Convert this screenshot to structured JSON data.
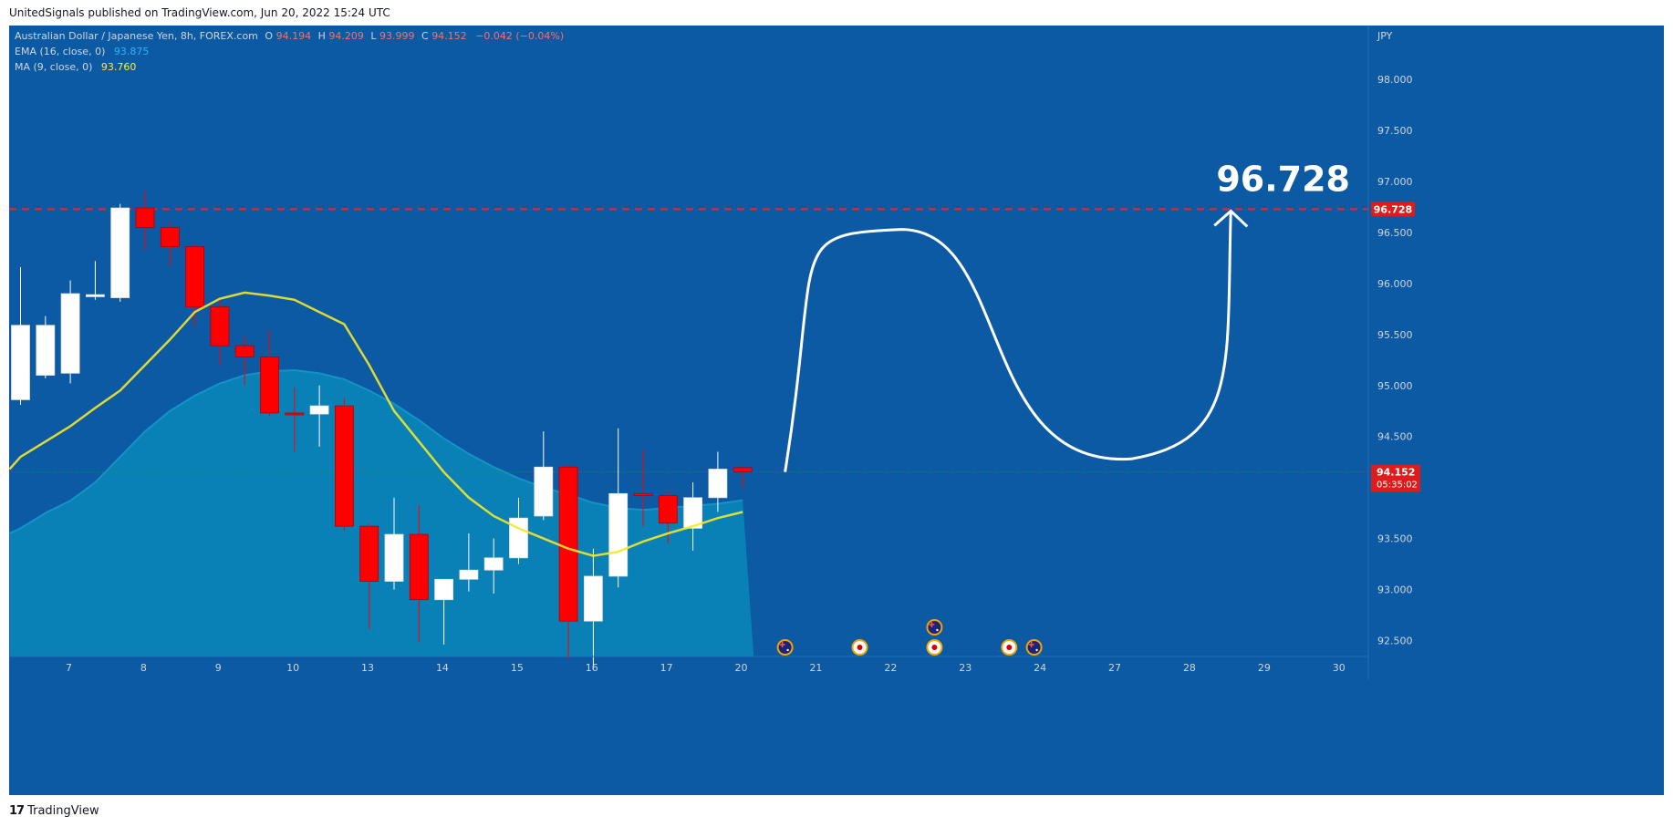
{
  "header": {
    "published": "UnitedSignals published on TradingView.com, Jun 20, 2022 15:24 UTC"
  },
  "footer": {
    "logo_glyph": "17",
    "brand": "TradingView"
  },
  "legend": {
    "symbol": "Australian Dollar / Japanese Yen, 8h, FOREX.com",
    "ohlc": [
      {
        "k": "O",
        "v": "94.194"
      },
      {
        "k": "H",
        "v": "94.209"
      },
      {
        "k": "L",
        "v": "93.999"
      },
      {
        "k": "C",
        "v": "94.152"
      }
    ],
    "change": "−0.042 (−0.04%)",
    "ema_label": "EMA (16, close, 0)",
    "ema_value": "93.875",
    "ma_label": "MA (9, close, 0)",
    "ma_value": "93.760"
  },
  "colors": {
    "background": "#0b5aa3",
    "bull": "#ffffff",
    "bear": "#ff0000",
    "ema_fill": "#0a84b8",
    "ma_line": "#f5e72a",
    "target": "#ff1f1f",
    "ohlc_value": "#ff6b6b",
    "ema_value": "#29b6f6",
    "ma_value": "#ffeb3b"
  },
  "chart_data": {
    "type": "candlestick",
    "currency": "JPY",
    "ylim": [
      92.2,
      98.6
    ],
    "y_ticks": [
      98.0,
      97.5,
      97.0,
      96.5,
      96.0,
      95.5,
      95.0,
      94.5,
      94.0,
      93.5,
      93.0,
      92.5
    ],
    "x_labels": [
      {
        "label": "7",
        "i": 1.5
      },
      {
        "label": "8",
        "i": 4.5
      },
      {
        "label": "9",
        "i": 7.5
      },
      {
        "label": "10",
        "i": 10.5
      },
      {
        "label": "13",
        "i": 13.5
      },
      {
        "label": "14",
        "i": 16.5
      },
      {
        "label": "15",
        "i": 19.5
      },
      {
        "label": "16",
        "i": 22.5
      },
      {
        "label": "17",
        "i": 25.5
      },
      {
        "label": "20",
        "i": 28.5
      },
      {
        "label": "21",
        "i": 31.5
      },
      {
        "label": "22",
        "i": 34.5
      },
      {
        "label": "23",
        "i": 37.5
      },
      {
        "label": "24",
        "i": 40.5
      },
      {
        "label": "27",
        "i": 43.5
      },
      {
        "label": "28",
        "i": 46.5
      },
      {
        "label": "29",
        "i": 49.5
      },
      {
        "label": "30",
        "i": 52.5
      }
    ],
    "candles": [
      {
        "o": 94.86,
        "h": 96.16,
        "l": 94.81,
        "c": 95.59
      },
      {
        "o": 95.1,
        "h": 95.68,
        "l": 95.07,
        "c": 95.59
      },
      {
        "o": 95.12,
        "h": 96.03,
        "l": 95.02,
        "c": 95.9
      },
      {
        "o": 95.87,
        "h": 96.22,
        "l": 95.84,
        "c": 95.89
      },
      {
        "o": 95.86,
        "h": 96.78,
        "l": 95.82,
        "c": 96.74
      },
      {
        "o": 96.74,
        "h": 96.91,
        "l": 96.33,
        "c": 96.55
      },
      {
        "o": 96.55,
        "h": 96.61,
        "l": 96.17,
        "c": 96.36
      },
      {
        "o": 96.36,
        "h": 96.39,
        "l": 95.58,
        "c": 95.77
      },
      {
        "o": 95.77,
        "h": 95.86,
        "l": 95.2,
        "c": 95.39
      },
      {
        "o": 95.39,
        "h": 95.48,
        "l": 95.0,
        "c": 95.28
      },
      {
        "o": 95.28,
        "h": 95.54,
        "l": 94.7,
        "c": 94.73
      },
      {
        "o": 94.73,
        "h": 94.98,
        "l": 94.35,
        "c": 94.72
      },
      {
        "o": 94.72,
        "h": 95.0,
        "l": 94.4,
        "c": 94.8
      },
      {
        "o": 94.8,
        "h": 94.88,
        "l": 93.58,
        "c": 93.62
      },
      {
        "o": 93.62,
        "h": 93.64,
        "l": 92.61,
        "c": 93.08
      },
      {
        "o": 93.08,
        "h": 93.9,
        "l": 93.0,
        "c": 93.54
      },
      {
        "o": 93.54,
        "h": 93.83,
        "l": 92.48,
        "c": 92.9
      },
      {
        "o": 92.9,
        "h": 93.09,
        "l": 92.46,
        "c": 93.1
      },
      {
        "o": 93.1,
        "h": 93.55,
        "l": 92.98,
        "c": 93.19
      },
      {
        "o": 93.19,
        "h": 93.5,
        "l": 92.96,
        "c": 93.31
      },
      {
        "o": 93.31,
        "h": 93.9,
        "l": 93.25,
        "c": 93.7
      },
      {
        "o": 93.72,
        "h": 94.55,
        "l": 93.68,
        "c": 94.2
      },
      {
        "o": 94.2,
        "h": 94.22,
        "l": 92.32,
        "c": 92.69
      },
      {
        "o": 92.69,
        "h": 93.4,
        "l": 92.21,
        "c": 93.13
      },
      {
        "o": 93.13,
        "h": 94.58,
        "l": 93.02,
        "c": 93.94
      },
      {
        "o": 93.94,
        "h": 94.37,
        "l": 93.62,
        "c": 93.92
      },
      {
        "o": 93.92,
        "h": 93.97,
        "l": 93.45,
        "c": 93.65
      },
      {
        "o": 93.6,
        "h": 94.05,
        "l": 93.38,
        "c": 93.9
      },
      {
        "o": 93.9,
        "h": 94.35,
        "l": 93.76,
        "c": 94.18
      },
      {
        "o": 94.194,
        "h": 94.209,
        "l": 93.999,
        "c": 94.152
      }
    ],
    "ema": [
      93.6,
      93.75,
      93.87,
      94.05,
      94.3,
      94.55,
      94.75,
      94.9,
      95.02,
      95.1,
      95.14,
      95.15,
      95.12,
      95.06,
      94.95,
      94.82,
      94.66,
      94.48,
      94.33,
      94.2,
      94.09,
      94.0,
      93.93,
      93.85,
      93.8,
      93.78,
      93.8,
      93.82,
      93.84,
      93.875
    ],
    "ma": [
      94.3,
      94.45,
      94.6,
      94.78,
      94.95,
      95.2,
      95.45,
      95.72,
      95.85,
      95.91,
      95.88,
      95.84,
      95.72,
      95.6,
      95.2,
      94.75,
      94.45,
      94.15,
      93.9,
      93.72,
      93.6,
      93.5,
      93.4,
      93.33,
      93.37,
      93.47,
      93.55,
      93.62,
      93.7,
      93.76
    ],
    "last_price": {
      "value": 94.152,
      "label": "94.152",
      "countdown": "05:35:02"
    },
    "target": {
      "value": 96.728,
      "label": "96.728",
      "tag": "96.728"
    },
    "projection": [
      {
        "i": 30.7,
        "v": 94.152
      },
      {
        "i": 35.4,
        "v": 96.53
      },
      {
        "i": 44.6,
        "v": 94.28
      },
      {
        "i": 48.6,
        "v": 96.728
      }
    ],
    "events": [
      {
        "i": 30.7,
        "row": 0,
        "kind": "flag-au"
      },
      {
        "i": 33.7,
        "row": 0,
        "kind": "flag-jp"
      },
      {
        "i": 36.7,
        "row": 0,
        "kind": "flag-jp"
      },
      {
        "i": 36.7,
        "row": 1,
        "kind": "flag-au"
      },
      {
        "i": 39.7,
        "row": 0,
        "kind": "flag-jp"
      },
      {
        "i": 40.7,
        "row": 0,
        "kind": "flag-au"
      }
    ]
  }
}
